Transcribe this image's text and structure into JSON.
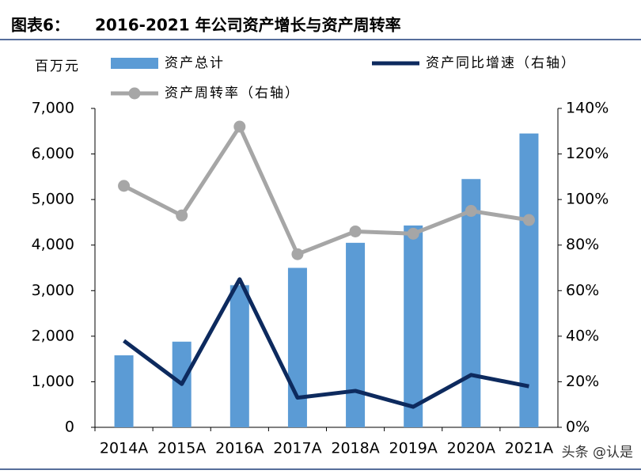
{
  "chart_data": {
    "type": "bar_line",
    "title_label": "图表6：",
    "title": "2016-2021 年公司资产增长与资产周转率",
    "y_label": "百万元",
    "watermark": "头条 @认是",
    "categories": [
      "2014A",
      "2015A",
      "2016A",
      "2017A",
      "2018A",
      "2019A",
      "2020A",
      "2021A"
    ],
    "series": [
      {
        "name": "资产总计",
        "type": "bar",
        "color": "#5b9bd5",
        "values": [
          1580,
          1880,
          3120,
          3500,
          4050,
          4430,
          5450,
          6450
        ]
      },
      {
        "name": "资产同比增速（右轴）",
        "type": "line",
        "axis": "y2",
        "color": "#0d2a5e",
        "values": [
          38,
          19,
          65,
          13,
          16,
          9,
          23,
          18
        ]
      },
      {
        "name": "资产周转率（右轴）",
        "type": "line",
        "axis": "y2",
        "color": "#a6a6a6",
        "markers": true,
        "values": [
          106,
          93,
          132,
          76,
          86,
          85,
          95,
          91
        ]
      }
    ],
    "ylim": [
      0,
      7000
    ],
    "yticks": [
      0,
      {
        "value": 1000,
        "label": "1,000"
      },
      {
        "value": 2000,
        "label": "2,000"
      },
      {
        "value": 3000,
        "label": "3,000"
      },
      {
        "value": 4000,
        "label": "4,000"
      },
      {
        "value": 5000,
        "label": "5,000"
      },
      {
        "value": 6000,
        "label": "6,000"
      },
      {
        "value": 7000,
        "label": "7,000"
      }
    ],
    "y2lim": [
      0,
      140
    ],
    "y2ticks": [
      {
        "value": 0,
        "label": "0%"
      },
      {
        "value": 20,
        "label": "20%"
      },
      {
        "value": 40,
        "label": "40%"
      },
      {
        "value": 60,
        "label": "60%"
      },
      {
        "value": 80,
        "label": "80%"
      },
      {
        "value": 100,
        "label": "100%"
      },
      {
        "value": 120,
        "label": "120%"
      },
      {
        "value": 140,
        "label": "140%"
      }
    ]
  }
}
